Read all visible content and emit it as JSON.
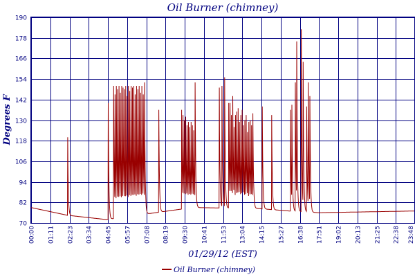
{
  "chart_data": {
    "type": "line",
    "title": "Oil Burner (chimney)",
    "xlabel": "01/29/12 (EST)",
    "ylabel": "Degrees F",
    "ylim": [
      70,
      190
    ],
    "yticks": [
      "70",
      "82",
      "94",
      "106",
      "118",
      "130",
      "142",
      "154",
      "166",
      "178",
      "190"
    ],
    "xlim": [
      0,
      1428
    ],
    "xticks": [
      "00:00",
      "01:11",
      "02:23",
      "03:34",
      "04:45",
      "05:57",
      "07:08",
      "08:19",
      "09:30",
      "10:41",
      "11:53",
      "13:04",
      "14:15",
      "15:27",
      "16:38",
      "17:51",
      "19:02",
      "20:13",
      "21:25",
      "22:38",
      "23:48"
    ],
    "grid": true,
    "legend_position": "bottom",
    "series": [
      {
        "name": "Oil Burner (chimney)",
        "color": "#990000",
        "x_unit": "minutes since 00:00",
        "baseline": [
          [
            0,
            79
          ],
          [
            135,
            74.5
          ],
          [
            280,
            72
          ],
          [
            600,
            79
          ],
          [
            840,
            78.5
          ],
          [
            960,
            77
          ],
          [
            1070,
            76
          ],
          [
            1428,
            77
          ]
        ],
        "spikes": [
          136,
          287,
          307,
          312,
          317,
          322,
          327,
          332,
          337,
          342,
          347,
          352,
          357,
          362,
          367,
          372,
          377,
          382,
          387,
          392,
          397,
          402,
          407,
          412,
          417,
          422,
          475,
          560,
          565,
          570,
          575,
          580,
          585,
          590,
          595,
          600,
          605,
          610,
          700,
          710,
          720,
          735,
          740,
          745,
          750,
          755,
          760,
          765,
          770,
          775,
          780,
          785,
          790,
          795,
          800,
          805,
          810,
          815,
          820,
          825,
          860,
          895,
          965,
          970,
          983,
          988,
          1005,
          1012,
          1025,
          1031,
          1037
        ],
        "peaks": [
          120,
          140,
          150,
          145,
          150,
          148,
          150,
          146,
          150,
          149,
          148,
          150,
          144,
          150,
          147,
          150,
          149,
          150,
          145,
          150,
          148,
          150,
          146,
          150,
          145,
          152,
          136,
          136,
          133,
          130,
          132,
          127,
          129,
          126,
          129,
          127,
          124,
          152,
          149,
          150,
          155,
          140,
          140,
          133,
          144,
          126,
          133,
          135,
          137,
          129,
          133,
          136,
          127,
          130,
          133,
          123,
          129,
          130,
          127,
          134,
          138,
          133,
          136,
          139,
          152,
          176,
          183,
          164,
          138,
          152,
          144
        ]
      }
    ]
  },
  "legend": {
    "label": "Oil Burner (chimney)"
  }
}
